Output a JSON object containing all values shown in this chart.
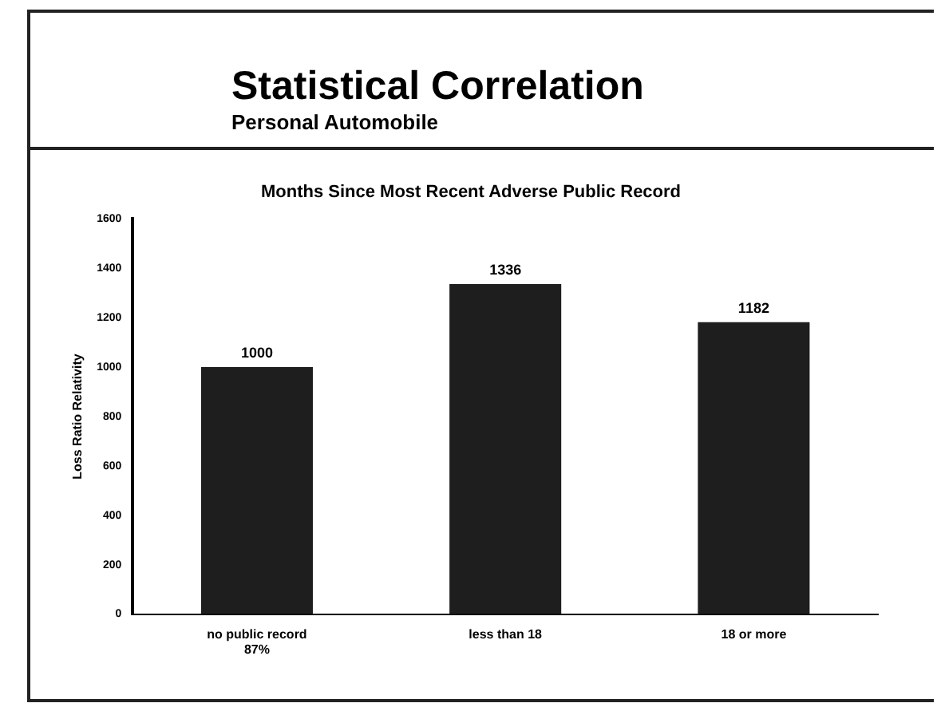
{
  "chart_data": {
    "type": "bar",
    "title": "Statistical Correlation",
    "subtitle": "Personal Automobile",
    "annotations": [
      "Months Since Most Recent Adverse Public Record"
    ],
    "ylabel": "Loss Ratio Relativity",
    "categories": [
      "no public record\n87%",
      "less than 18",
      "18 or more"
    ],
    "values": [
      1000,
      1336,
      1182
    ],
    "color": "#1e1e1e",
    "ylim": [
      0,
      1600
    ],
    "yticks": [
      0,
      200,
      400,
      600,
      800,
      1000,
      1200,
      1400,
      1600
    ],
    "grid": false,
    "legend": false,
    "data_labels": true
  }
}
